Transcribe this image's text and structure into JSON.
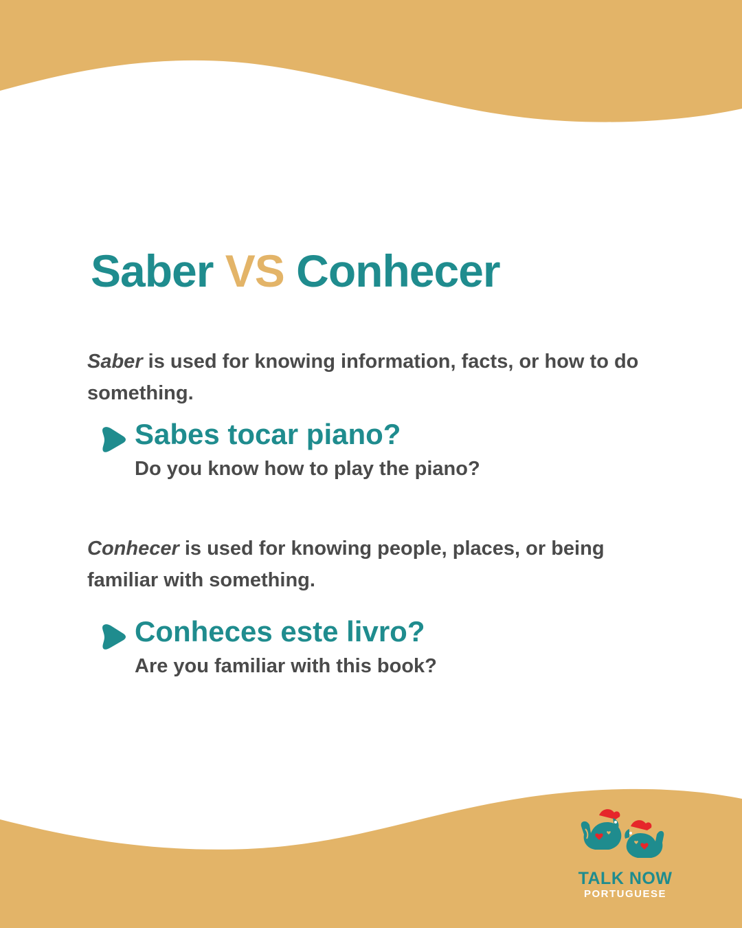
{
  "title": {
    "word1": "Saber",
    "vs": "VS",
    "word2": "Conhecer"
  },
  "sections": [
    {
      "term": "Saber",
      "description": " is used for knowing information, facts, or how to do something.",
      "example_pt": "Sabes tocar piano?",
      "example_en": "Do you know how to play the piano?"
    },
    {
      "term": "Conhecer",
      "description": " is used for knowing people, places, or being familiar with something.",
      "example_pt": "Conheces este livro?",
      "example_en": "Are you familiar with this book?"
    }
  ],
  "logo": {
    "title": "TALK NOW",
    "subtitle": "PORTUGUESE"
  },
  "colors": {
    "teal": "#1f8c8e",
    "gold": "#e3b468",
    "text": "#4a4a4a",
    "rooster_red": "#e6262a"
  },
  "icons": {
    "bullet": "play-arrow-icon",
    "logo": "rooster-icon"
  }
}
